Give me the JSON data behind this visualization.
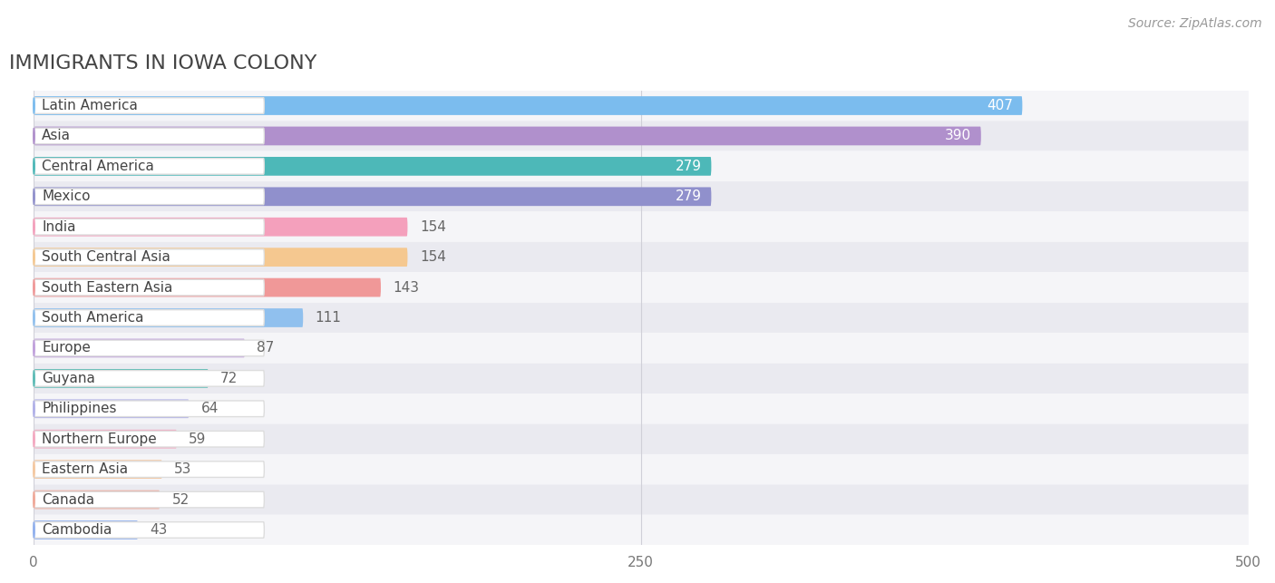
{
  "title": "IMMIGRANTS IN IOWA COLONY",
  "source": "Source: ZipAtlas.com",
  "categories": [
    "Latin America",
    "Asia",
    "Central America",
    "Mexico",
    "India",
    "South Central Asia",
    "South Eastern Asia",
    "South America",
    "Europe",
    "Guyana",
    "Philippines",
    "Northern Europe",
    "Eastern Asia",
    "Canada",
    "Cambodia"
  ],
  "values": [
    407,
    390,
    279,
    279,
    154,
    154,
    143,
    111,
    87,
    72,
    64,
    59,
    53,
    52,
    43
  ],
  "bar_colors": [
    "#7bbcee",
    "#b090cc",
    "#4db8b8",
    "#9090cc",
    "#f4a0bc",
    "#f5c890",
    "#f09898",
    "#90c0ee",
    "#c0a0dc",
    "#5bbbb5",
    "#b0b0e8",
    "#f4a8c0",
    "#f5c8a0",
    "#f0a898",
    "#90b0ee"
  ],
  "xlim": [
    0,
    500
  ],
  "xticks": [
    0,
    250,
    500
  ],
  "background_color": "#ffffff",
  "row_colors": [
    "#f5f5f8",
    "#eaeaf0"
  ],
  "grid_color": "#d0d0d8",
  "title_fontsize": 16,
  "label_fontsize": 11,
  "value_fontsize": 11,
  "value_inside_threshold": 279
}
